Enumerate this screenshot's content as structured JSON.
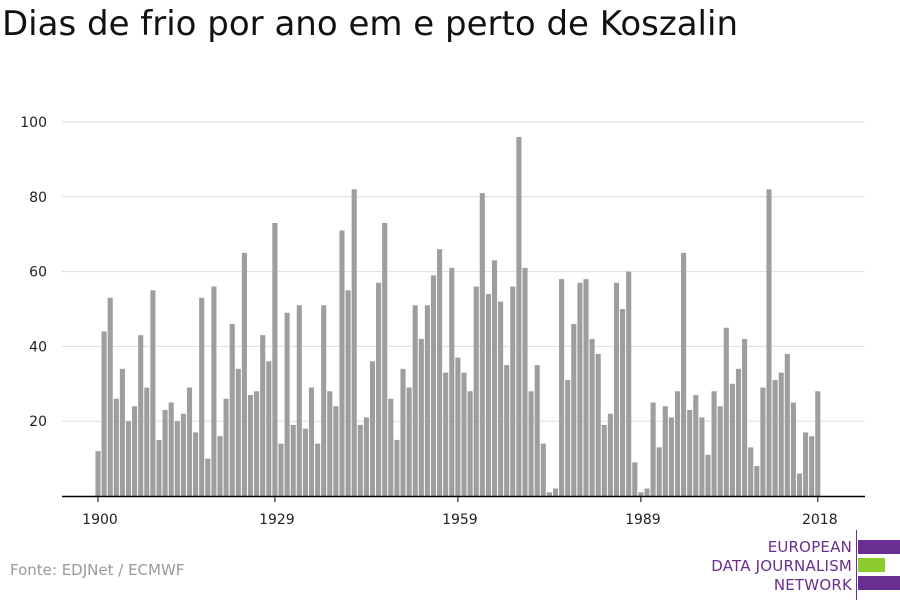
{
  "title": "Dias de frio por ano em e perto de Koszalin",
  "source": "Fonte: EDJNet / ECMWF",
  "logo": {
    "lines": [
      "EUROPEAN",
      "DATA JOURNALISM",
      "NETWORK"
    ],
    "colors": {
      "text": "#6a2d91",
      "bar_purple": "#6a2d91",
      "bar_green": "#8ccc2e"
    }
  },
  "colors": {
    "bar": "#9e9e9e",
    "grid": "#dddddd",
    "axis": "#000000"
  },
  "chart_data": {
    "type": "bar",
    "title": "Dias de frio por ano em e perto de Koszalin",
    "xlabel": "",
    "ylabel": "",
    "ylim": [
      0,
      100
    ],
    "yticks": [
      20,
      40,
      60,
      80,
      100
    ],
    "xticks": [
      1900,
      1929,
      1959,
      1989,
      2018
    ],
    "grid": true,
    "x_start": 1900,
    "values": [
      12,
      44,
      53,
      26,
      34,
      20,
      24,
      43,
      29,
      55,
      15,
      23,
      25,
      20,
      22,
      29,
      17,
      53,
      10,
      56,
      16,
      26,
      46,
      34,
      65,
      27,
      28,
      43,
      36,
      73,
      14,
      49,
      19,
      51,
      18,
      29,
      14,
      51,
      28,
      24,
      71,
      55,
      82,
      19,
      21,
      36,
      57,
      73,
      26,
      15,
      34,
      29,
      51,
      42,
      51,
      59,
      66,
      33,
      61,
      37,
      33,
      28,
      56,
      81,
      54,
      63,
      52,
      35,
      56,
      96,
      61,
      28,
      35,
      14,
      1,
      2,
      58,
      31,
      46,
      57,
      58,
      42,
      38,
      19,
      22,
      57,
      50,
      60,
      9,
      1,
      2,
      25,
      13,
      24,
      21,
      28,
      65,
      23,
      27,
      21,
      11,
      28,
      24,
      45,
      30,
      34,
      42,
      13,
      8,
      29,
      82,
      31,
      33,
      38,
      25,
      6,
      17,
      16,
      28
    ]
  }
}
